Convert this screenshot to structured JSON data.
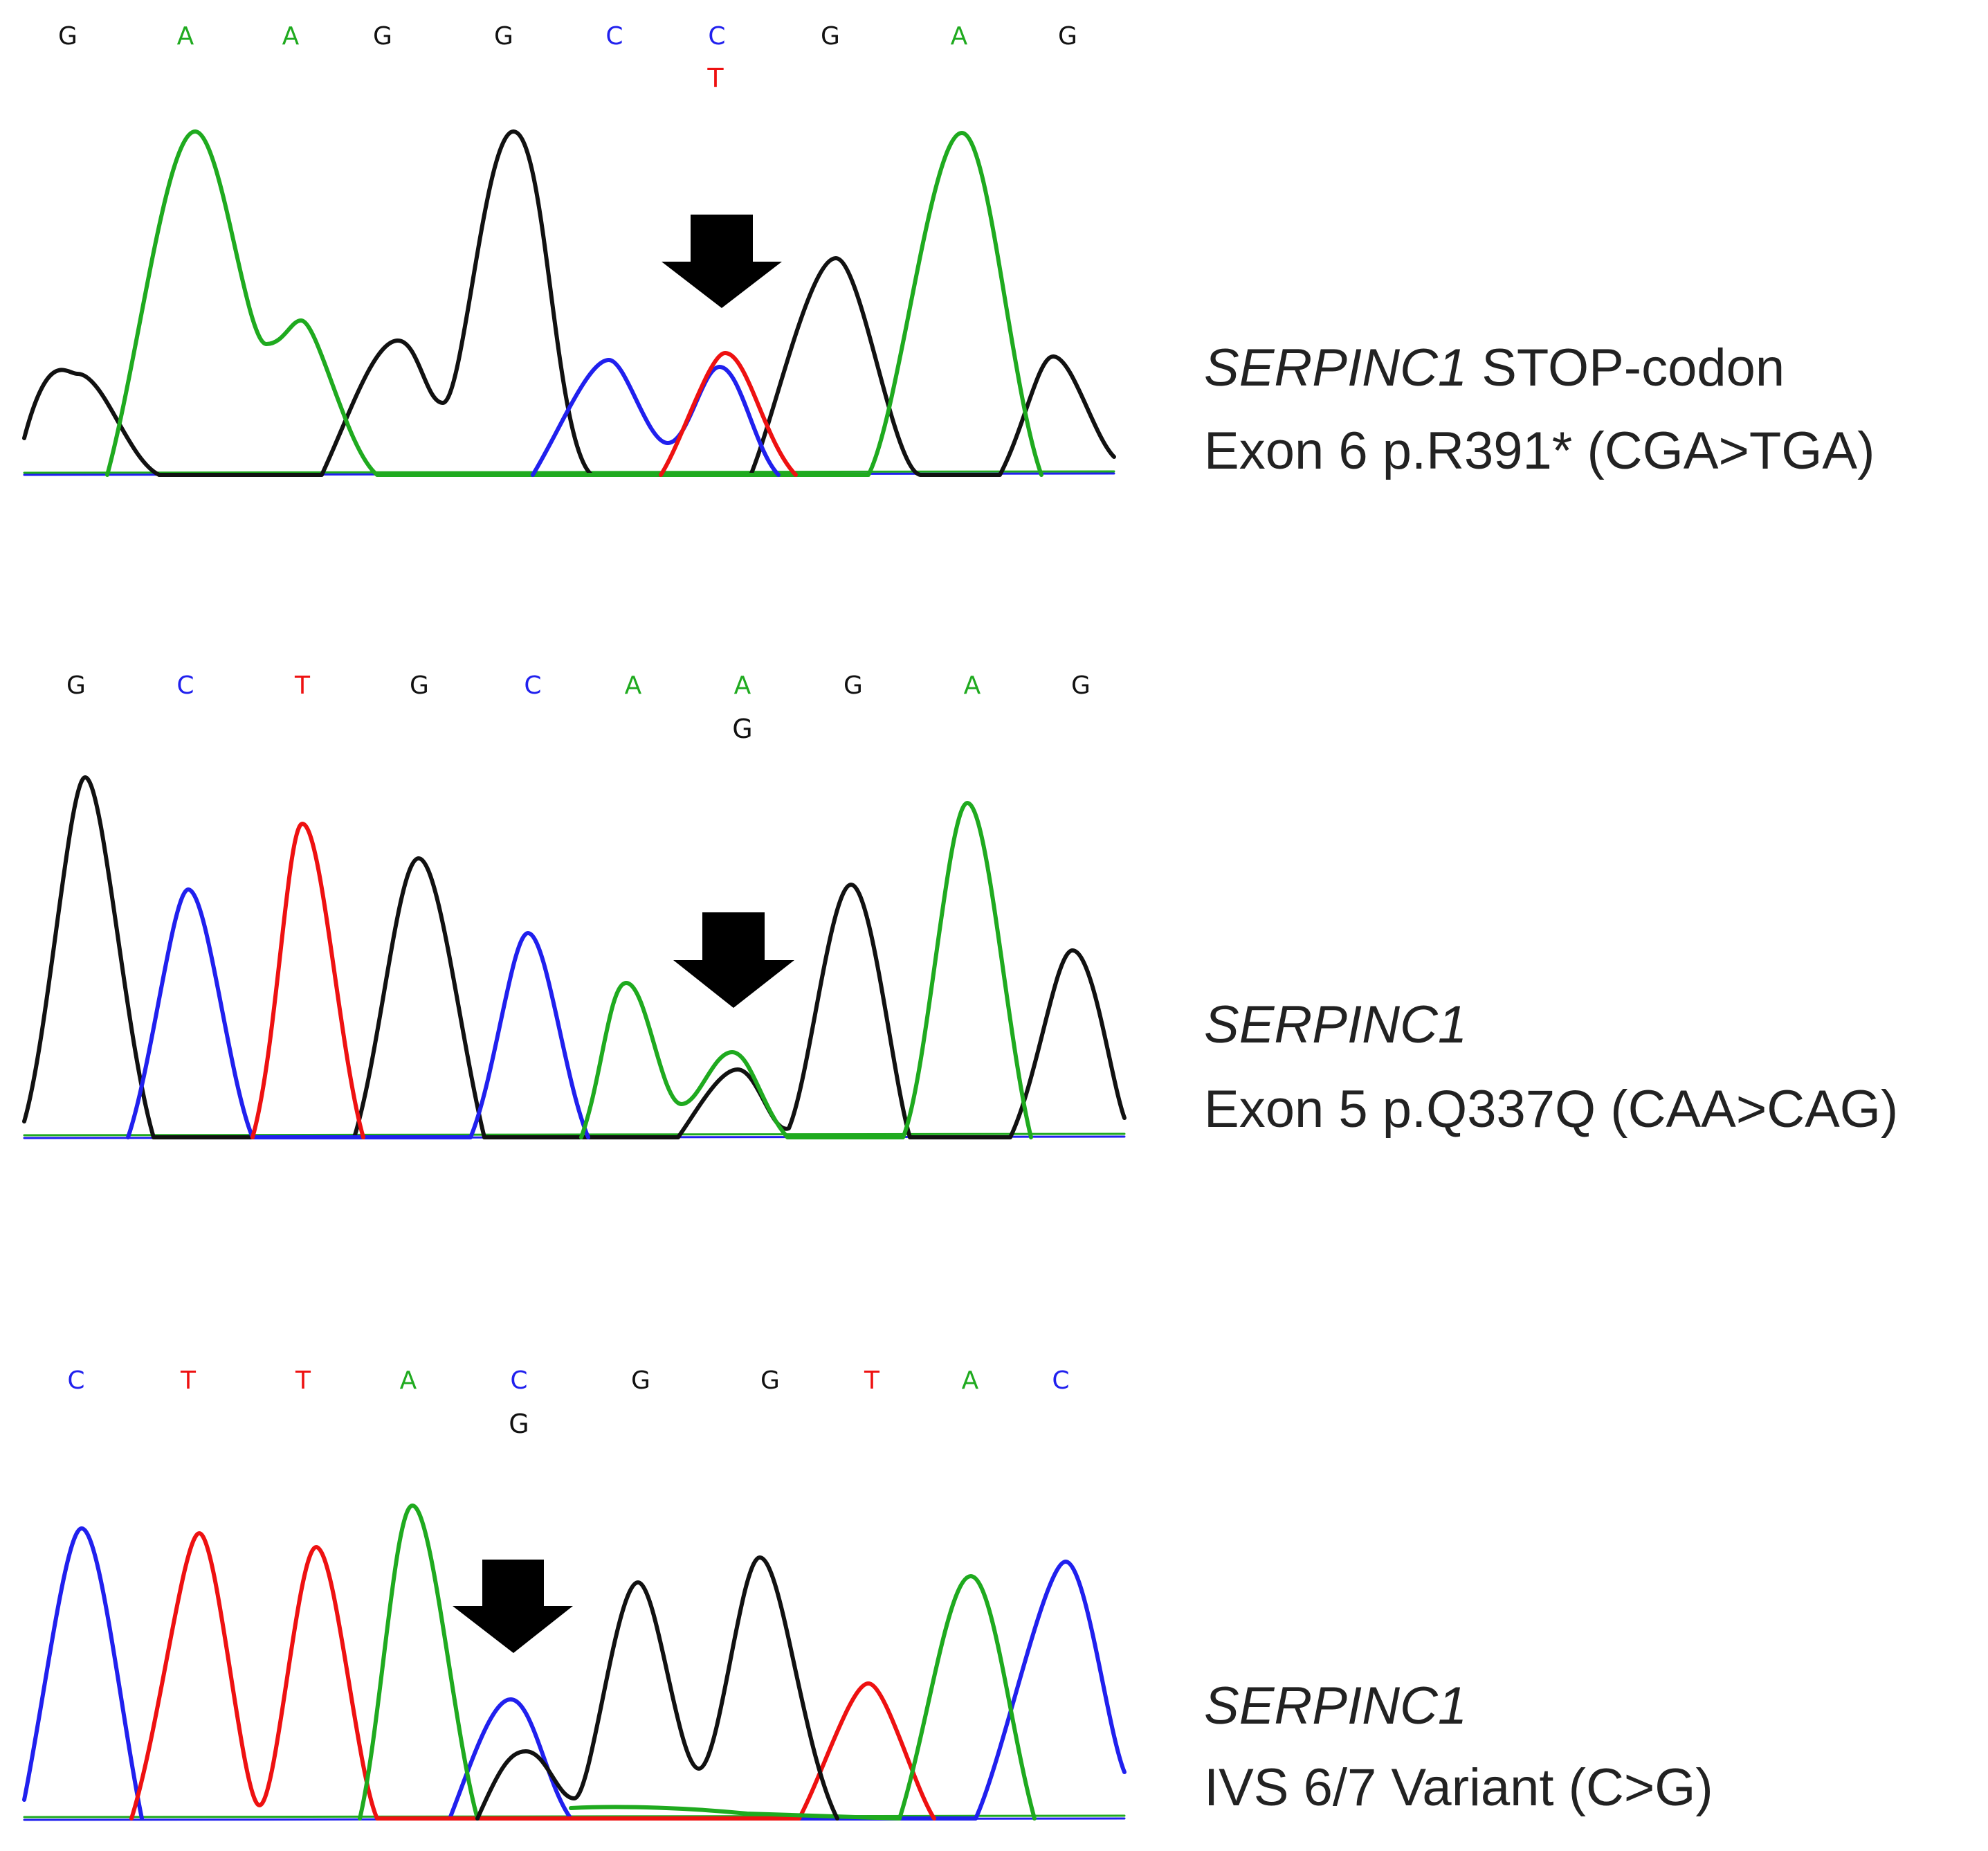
{
  "colors": {
    "A": "#1faa1f",
    "C": "#2020ee",
    "G": "#111111",
    "T": "#ee1111",
    "arrow": "#000000"
  },
  "panels": [
    {
      "id": "stop-codon",
      "bases": [
        "G",
        "A",
        "A",
        "G",
        "G",
        "C",
        "C",
        "G",
        "A",
        "G"
      ],
      "alt": {
        "index": 6,
        "base": "T"
      },
      "caption": {
        "gene": "SERPINC1",
        "line1_rest": " STOP-codon",
        "line2": "Exon 6 p.R391* (CGA>TGA)"
      }
    },
    {
      "id": "synonymous",
      "bases": [
        "G",
        "C",
        "T",
        "G",
        "C",
        "A",
        "A",
        "G",
        "A",
        "G"
      ],
      "alt": {
        "index": 6,
        "base": "G"
      },
      "caption": {
        "gene": "SERPINC1",
        "line1_rest": "",
        "line2": "Exon 5 p.Q337Q (CAA>CAG)"
      }
    },
    {
      "id": "intronic",
      "bases": [
        "C",
        "T",
        "T",
        "A",
        "C",
        "G",
        "G",
        "T",
        "A",
        "C"
      ],
      "alt": {
        "index": 4,
        "base": "G"
      },
      "caption": {
        "gene": "SERPINC1",
        "line1_rest": "",
        "line2": "IVS 6/7 Variant (C>G)"
      }
    }
  ]
}
